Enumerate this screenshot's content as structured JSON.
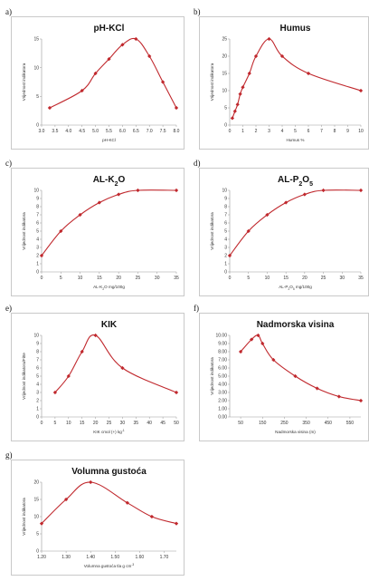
{
  "panels": [
    "a)",
    "b)",
    "c)",
    "d)",
    "e)",
    "f)",
    "g)"
  ],
  "accent": "#c0282d",
  "chart_data": [
    {
      "type": "line",
      "title": "pH-KCl",
      "xlabel": "pH-KCl",
      "ylabel": "Vrijednost indikatora",
      "xlim": [
        3.0,
        8.0
      ],
      "ylim": [
        0,
        15
      ],
      "x_ticks": [
        "3.0",
        "3.5",
        "4.0",
        "4.5",
        "5.0",
        "5.5",
        "6.0",
        "6.5",
        "7.0",
        "7.5",
        "8.0"
      ],
      "y_ticks": [
        "0",
        "5",
        "10",
        "15"
      ],
      "x": [
        3.3,
        4.5,
        5.0,
        5.5,
        6.0,
        6.5,
        7.0,
        7.5,
        8.0
      ],
      "y": [
        3,
        6,
        9,
        11.5,
        14,
        15,
        12,
        7.5,
        3
      ]
    },
    {
      "type": "line",
      "title": "Humus",
      "xlabel": "Humus %",
      "ylabel": "Vrijednost indikatora",
      "xlim": [
        0,
        10
      ],
      "ylim": [
        0,
        25
      ],
      "x_ticks": [
        "0",
        "1",
        "2",
        "3",
        "4",
        "5",
        "6",
        "7",
        "8",
        "9",
        "10"
      ],
      "y_ticks": [
        "0",
        "5",
        "10",
        "15",
        "20",
        "25"
      ],
      "x": [
        0.2,
        0.4,
        0.6,
        0.8,
        1,
        1.5,
        2,
        3,
        4,
        6,
        10
      ],
      "y": [
        2,
        4,
        6,
        9,
        11,
        15,
        20,
        25,
        20,
        15,
        10
      ]
    },
    {
      "type": "line",
      "title": "AL-K2O",
      "xlabel": "AL-K2O mg/100g",
      "ylabel": "Vrijednost indikatora",
      "xlim": [
        0,
        35
      ],
      "ylim": [
        0,
        10
      ],
      "x_ticks": [
        "0",
        "5",
        "10",
        "15",
        "20",
        "25",
        "30",
        "35"
      ],
      "y_ticks": [
        "0",
        "1",
        "2",
        "3",
        "4",
        "5",
        "6",
        "7",
        "8",
        "9",
        "10"
      ],
      "x": [
        0,
        5,
        10,
        15,
        20,
        25,
        35
      ],
      "y": [
        2,
        5,
        7,
        8.5,
        9.5,
        10,
        10
      ]
    },
    {
      "type": "line",
      "title": "AL-P2O5",
      "xlabel": "AL-P2O5 mg/100g",
      "ylabel": "Vrijednost indikatora",
      "xlim": [
        0,
        35
      ],
      "ylim": [
        0,
        10
      ],
      "x_ticks": [
        "0",
        "5",
        "10",
        "15",
        "20",
        "25",
        "30",
        "35"
      ],
      "y_ticks": [
        "0",
        "1",
        "2",
        "3",
        "4",
        "5",
        "6",
        "7",
        "8",
        "9",
        "10"
      ],
      "x": [
        0,
        5,
        10,
        15,
        20,
        25,
        35
      ],
      "y": [
        2,
        5,
        7,
        8.5,
        9.5,
        10,
        10
      ]
    },
    {
      "type": "line",
      "title": "KIK",
      "xlabel": "KIK cmol (+) kg-1",
      "ylabel": "Vrijednost indikatora/Fitte",
      "xlim": [
        0,
        50
      ],
      "ylim": [
        0,
        10
      ],
      "x_ticks": [
        "0",
        "5",
        "10",
        "15",
        "20",
        "25",
        "30",
        "35",
        "40",
        "45",
        "50"
      ],
      "y_ticks": [
        "0",
        "1",
        "2",
        "3",
        "4",
        "5",
        "6",
        "7",
        "8",
        "9",
        "10"
      ],
      "x": [
        5,
        10,
        15,
        20,
        30,
        50
      ],
      "y": [
        3,
        5,
        8,
        10,
        6,
        3
      ]
    },
    {
      "type": "line",
      "title": "Nadmorska visina",
      "xlabel": "Nadmorska visina (m)",
      "ylabel": "Vrijednost indikatora",
      "xlim": [
        0,
        600
      ],
      "ylim": [
        0,
        10
      ],
      "x_ticks": [
        "50",
        "150",
        "250",
        "350",
        "450",
        "550"
      ],
      "x_tick_values": [
        50,
        150,
        250,
        350,
        450,
        550
      ],
      "y_ticks": [
        "0.00",
        "1.00",
        "2.00",
        "3.00",
        "4.00",
        "5.00",
        "6.00",
        "7.00",
        "8.00",
        "9.00",
        "10.00"
      ],
      "x": [
        50,
        100,
        130,
        150,
        200,
        300,
        400,
        500,
        600
      ],
      "y": [
        8,
        9.5,
        10,
        9,
        7,
        5,
        3.5,
        2.5,
        2
      ]
    },
    {
      "type": "line",
      "title": "Volumna gustoća",
      "xlabel": "Volumna gustoća tla g cm-3",
      "ylabel": "Vrijednost indikatora",
      "xlim": [
        1.2,
        1.75
      ],
      "ylim": [
        0,
        20
      ],
      "x_ticks": [
        "1.20",
        "1.30",
        "1.40",
        "1.50",
        "1.60",
        "1.70"
      ],
      "x_tick_values": [
        1.2,
        1.3,
        1.4,
        1.5,
        1.6,
        1.7
      ],
      "y_ticks": [
        "0",
        "5",
        "10",
        "15",
        "20"
      ],
      "x": [
        1.2,
        1.3,
        1.4,
        1.55,
        1.65,
        1.75
      ],
      "y": [
        8,
        15,
        20,
        14,
        10,
        8
      ]
    }
  ]
}
